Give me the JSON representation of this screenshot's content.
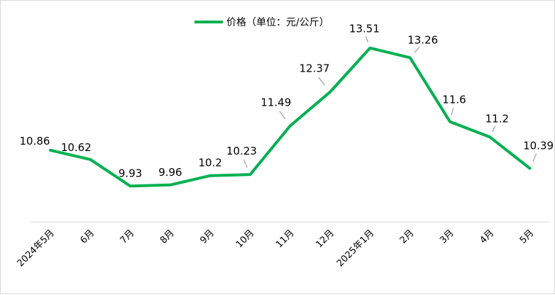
{
  "chart_data": {
    "type": "line",
    "categories": [
      "2024年5月",
      "6月",
      "7月",
      "8月",
      "9月",
      "10月",
      "11月",
      "12月",
      "2025年1月",
      "2月",
      "3月",
      "4月",
      "5月"
    ],
    "series": [
      {
        "name": "价格（单位：元/公斤）",
        "values": [
          10.86,
          10.62,
          9.93,
          9.96,
          10.2,
          10.23,
          11.49,
          12.37,
          13.51,
          13.26,
          11.6,
          11.2,
          10.39
        ],
        "color": "#00b050"
      }
    ],
    "title": "",
    "xlabel": "",
    "ylabel": "",
    "ylim": [
      9.0,
      14.0
    ],
    "grid": false,
    "legend_position": "top-center",
    "label_leader_color": "#a6a6a6"
  }
}
